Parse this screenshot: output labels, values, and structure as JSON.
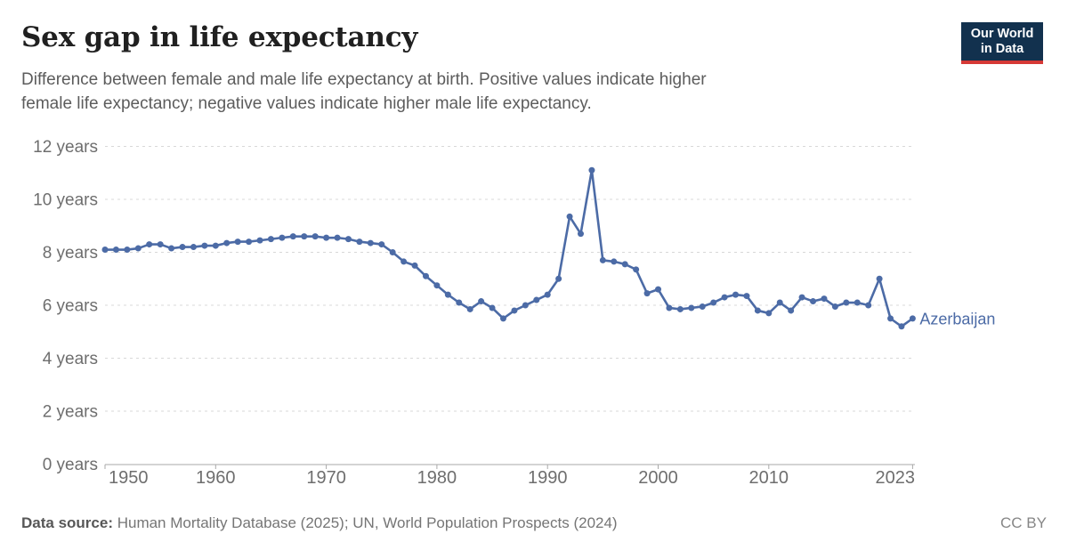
{
  "header": {
    "title": "Sex gap in life expectancy",
    "subtitle_line1": "Difference between female and male life expectancy at birth. Positive values indicate higher",
    "subtitle_line2": "female life expectancy; negative values indicate higher male life expectancy.",
    "logo": {
      "line1": "Our World",
      "line2": "in Data"
    }
  },
  "chart_data": {
    "type": "line",
    "title": "Sex gap in life expectancy",
    "unit": "years",
    "xlabel": "",
    "ylabel": "",
    "xlim": [
      1950,
      2023
    ],
    "ylim": [
      0,
      12
    ],
    "grid": "horizontal-dashed",
    "legend_position": "end-of-line-label",
    "x_ticks": [
      1950,
      1960,
      1970,
      1980,
      1990,
      2000,
      2010,
      2023
    ],
    "y_ticks": [
      0,
      2,
      4,
      6,
      8,
      10,
      12
    ],
    "y_tick_suffix": " years",
    "series": [
      {
        "name": "Azerbaijan",
        "color": "#4c6ba6",
        "x": [
          1950,
          1951,
          1952,
          1953,
          1954,
          1955,
          1956,
          1957,
          1958,
          1959,
          1960,
          1961,
          1962,
          1963,
          1964,
          1965,
          1966,
          1967,
          1968,
          1969,
          1970,
          1971,
          1972,
          1973,
          1974,
          1975,
          1976,
          1977,
          1978,
          1979,
          1980,
          1981,
          1982,
          1983,
          1984,
          1985,
          1986,
          1987,
          1988,
          1989,
          1990,
          1991,
          1992,
          1993,
          1994,
          1995,
          1996,
          1997,
          1998,
          1999,
          2000,
          2001,
          2002,
          2003,
          2004,
          2005,
          2006,
          2007,
          2008,
          2009,
          2010,
          2011,
          2012,
          2013,
          2014,
          2015,
          2016,
          2017,
          2018,
          2019,
          2020,
          2021,
          2022,
          2023
        ],
        "values": [
          8.1,
          8.1,
          8.1,
          8.15,
          8.3,
          8.3,
          8.15,
          8.2,
          8.2,
          8.25,
          8.25,
          8.35,
          8.4,
          8.4,
          8.45,
          8.5,
          8.55,
          8.6,
          8.6,
          8.6,
          8.55,
          8.55,
          8.5,
          8.4,
          8.35,
          8.3,
          8.0,
          7.65,
          7.5,
          7.1,
          6.75,
          6.4,
          6.1,
          5.85,
          6.15,
          5.9,
          5.5,
          5.8,
          6.0,
          6.2,
          6.4,
          7.0,
          9.35,
          8.7,
          11.1,
          7.7,
          7.65,
          7.55,
          7.35,
          6.45,
          6.6,
          5.9,
          5.85,
          5.9,
          5.95,
          6.1,
          6.3,
          6.4,
          6.35,
          5.8,
          5.7,
          6.1,
          5.8,
          6.3,
          6.15,
          6.25,
          5.95,
          6.1,
          6.1,
          6.0,
          7.0,
          5.5,
          5.2,
          5.5
        ]
      }
    ],
    "end_label": "Azerbaijan"
  },
  "footer": {
    "datasource_label": "Data source:",
    "datasource_text": " Human Mortality Database (2025); UN, World Population Prospects (2024)",
    "license": "CC BY"
  },
  "colors": {
    "line": "#4c6ba6",
    "grid": "#d8d8d8",
    "axis": "#a9a9a9",
    "tick_text": "#6e6e6e"
  }
}
